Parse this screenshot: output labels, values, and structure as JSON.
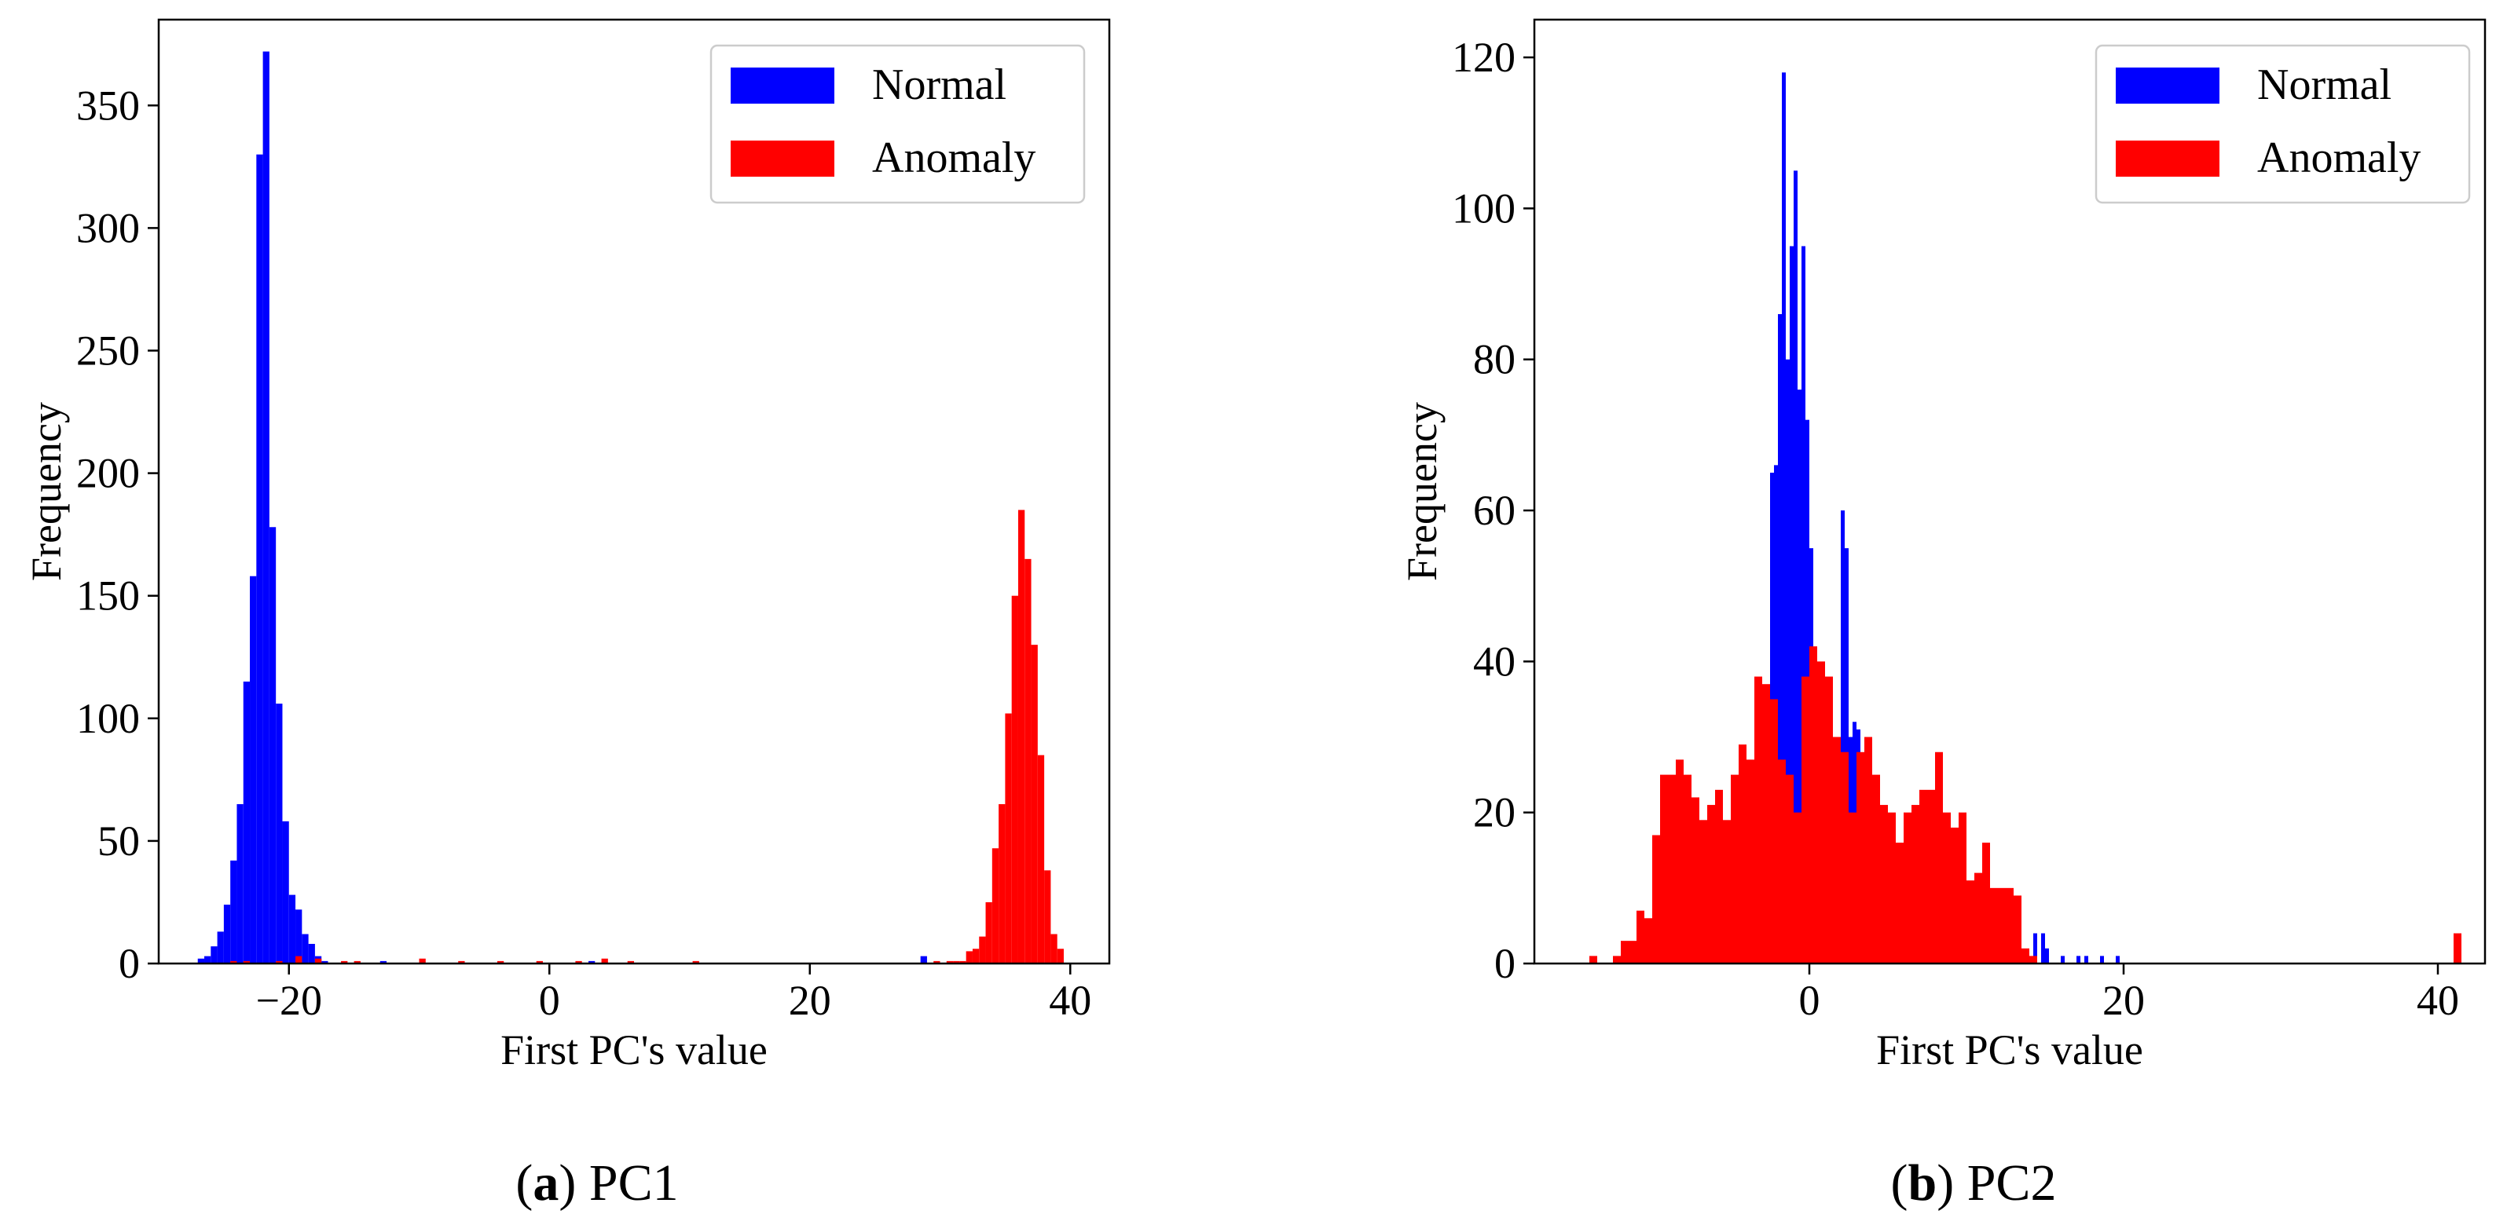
{
  "chart_data": [
    {
      "type": "bar",
      "panel_label": "(a)",
      "panel_title": "PC1",
      "xlabel": "First PC's value",
      "ylabel": "Frequency",
      "xlim": [
        -30,
        43
      ],
      "ylim": [
        0,
        385
      ],
      "xticks": [
        -20,
        0,
        20,
        40
      ],
      "yticks": [
        0,
        50,
        100,
        150,
        200,
        250,
        300,
        350
      ],
      "legend_position": "top-right",
      "grid": false,
      "colors": {
        "Normal": "#0000ff",
        "Anomaly": "#ff0000"
      },
      "series": [
        {
          "name": "Normal",
          "bin_width": 0.5,
          "bins": [
            [
              -27,
              2
            ],
            [
              -26.5,
              3
            ],
            [
              -26,
              7
            ],
            [
              -25.5,
              13
            ],
            [
              -25,
              24
            ],
            [
              -24.5,
              42
            ],
            [
              -24,
              65
            ],
            [
              -23.5,
              115
            ],
            [
              -23,
              158
            ],
            [
              -22.5,
              330
            ],
            [
              -22,
              372
            ],
            [
              -21.5,
              178
            ],
            [
              -21,
              106
            ],
            [
              -20.5,
              58
            ],
            [
              -20,
              28
            ],
            [
              -19.5,
              22
            ],
            [
              -19,
              12
            ],
            [
              -18.5,
              8
            ],
            [
              -18,
              3
            ],
            [
              -17.5,
              1
            ],
            [
              -13,
              1
            ],
            [
              3,
              1
            ],
            [
              28.5,
              3
            ]
          ]
        },
        {
          "name": "Anomaly",
          "bin_width": 0.5,
          "bins": [
            [
              -24.5,
              1
            ],
            [
              -23.5,
              1
            ],
            [
              -21,
              1
            ],
            [
              -19.5,
              3
            ],
            [
              -18,
              2
            ],
            [
              -16,
              1
            ],
            [
              -15,
              1
            ],
            [
              -10,
              2
            ],
            [
              -7,
              1
            ],
            [
              -4,
              1
            ],
            [
              -1,
              1
            ],
            [
              2,
              1
            ],
            [
              4,
              2
            ],
            [
              6,
              1
            ],
            [
              11,
              1
            ],
            [
              29.5,
              1
            ],
            [
              30.5,
              1
            ],
            [
              31,
              1
            ],
            [
              31.5,
              1
            ],
            [
              32,
              5
            ],
            [
              32.5,
              6
            ],
            [
              33,
              11
            ],
            [
              33.5,
              25
            ],
            [
              34,
              47
            ],
            [
              34.5,
              65
            ],
            [
              35,
              102
            ],
            [
              35.5,
              150
            ],
            [
              36,
              185
            ],
            [
              36.5,
              165
            ],
            [
              37,
              130
            ],
            [
              37.5,
              85
            ],
            [
              38,
              38
            ],
            [
              38.5,
              12
            ],
            [
              39,
              6
            ]
          ]
        }
      ]
    },
    {
      "type": "bar",
      "panel_label": "(b)",
      "panel_title": "PC2",
      "xlabel": "First PC's value",
      "ylabel": "Frequency",
      "xlim": [
        -17.5,
        43
      ],
      "ylim": [
        0,
        125
      ],
      "xticks": [
        0,
        20,
        40
      ],
      "yticks": [
        0,
        20,
        40,
        60,
        80,
        100,
        120
      ],
      "legend_position": "top-right",
      "grid": false,
      "colors": {
        "Normal": "#0000ff",
        "Anomaly": "#ff0000"
      },
      "series": [
        {
          "name": "Normal",
          "bin_width": 0.25,
          "bins": [
            [
              -2.75,
              30
            ],
            [
              -2.5,
              65
            ],
            [
              -2.25,
              66
            ],
            [
              -2,
              86
            ],
            [
              -1.75,
              118
            ],
            [
              -1.5,
              80
            ],
            [
              -1.25,
              95
            ],
            [
              -1,
              105
            ],
            [
              -0.75,
              76
            ],
            [
              -0.5,
              95
            ],
            [
              -0.25,
              72
            ],
            [
              0,
              55
            ],
            [
              0.25,
              30
            ],
            [
              2,
              60
            ],
            [
              2.25,
              55
            ],
            [
              2.5,
              30
            ],
            [
              2.75,
              32
            ],
            [
              3,
              31
            ],
            [
              14.25,
              4
            ],
            [
              14.75,
              4
            ],
            [
              15,
              2
            ],
            [
              16,
              1
            ],
            [
              17,
              1
            ],
            [
              17.5,
              1
            ],
            [
              18.5,
              1
            ],
            [
              19.5,
              1
            ]
          ]
        },
        {
          "name": "Anomaly",
          "bin_width": 0.5,
          "bins": [
            [
              -14,
              1
            ],
            [
              -12.5,
              1
            ],
            [
              -12,
              3
            ],
            [
              -11.5,
              3
            ],
            [
              -11,
              7
            ],
            [
              -10.5,
              6
            ],
            [
              -10,
              17
            ],
            [
              -9.5,
              25
            ],
            [
              -9,
              25
            ],
            [
              -8.5,
              27
            ],
            [
              -8,
              25
            ],
            [
              -7.5,
              22
            ],
            [
              -7,
              19
            ],
            [
              -6.5,
              21
            ],
            [
              -6,
              23
            ],
            [
              -5.5,
              19
            ],
            [
              -5,
              25
            ],
            [
              -4.5,
              29
            ],
            [
              -4,
              27
            ],
            [
              -3.5,
              38
            ],
            [
              -3,
              37
            ],
            [
              -2.5,
              35
            ],
            [
              -2,
              27
            ],
            [
              -1.5,
              25
            ],
            [
              -1,
              20
            ],
            [
              -0.5,
              38
            ],
            [
              0,
              42
            ],
            [
              0.5,
              40
            ],
            [
              1,
              38
            ],
            [
              1.5,
              30
            ],
            [
              2,
              28
            ],
            [
              2.5,
              20
            ],
            [
              3,
              28
            ],
            [
              3.5,
              30
            ],
            [
              4,
              25
            ],
            [
              4.5,
              21
            ],
            [
              5,
              20
            ],
            [
              5.5,
              16
            ],
            [
              6,
              20
            ],
            [
              6.5,
              21
            ],
            [
              7,
              23
            ],
            [
              7.5,
              23
            ],
            [
              8,
              28
            ],
            [
              8.5,
              20
            ],
            [
              9,
              18
            ],
            [
              9.5,
              20
            ],
            [
              10,
              11
            ],
            [
              10.5,
              12
            ],
            [
              11,
              16
            ],
            [
              11.5,
              10
            ],
            [
              12,
              10
            ],
            [
              12.5,
              10
            ],
            [
              13,
              9
            ],
            [
              13.5,
              2
            ],
            [
              14,
              1
            ],
            [
              41,
              4
            ]
          ]
        }
      ]
    }
  ]
}
